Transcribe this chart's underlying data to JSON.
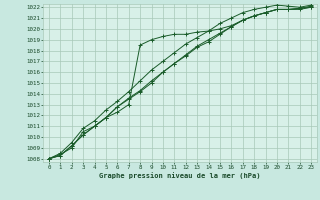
{
  "title": "Graphe pression niveau de la mer (hPa)",
  "bg_color": "#c8e8e0",
  "plot_bg_color": "#d8f0e8",
  "grid_color": "#a8c8b8",
  "line_color": "#1a5c2a",
  "xlim": [
    0,
    23
  ],
  "ylim": [
    1008,
    1022
  ],
  "xticks": [
    0,
    1,
    2,
    3,
    4,
    5,
    6,
    7,
    8,
    9,
    10,
    11,
    12,
    13,
    14,
    15,
    16,
    17,
    18,
    19,
    20,
    21,
    22,
    23
  ],
  "yticks": [
    1008,
    1009,
    1010,
    1011,
    1012,
    1013,
    1014,
    1015,
    1016,
    1017,
    1018,
    1019,
    1020,
    1021,
    1022
  ],
  "series": [
    [
      1008.0,
      1008.4,
      1009.0,
      1010.5,
      1011.0,
      1011.8,
      1012.3,
      1013.0,
      1018.5,
      1019.0,
      1019.3,
      1019.5,
      1019.5,
      1019.7,
      1019.8,
      1020.0,
      1020.3,
      1020.8,
      1021.2,
      1021.5,
      1021.8,
      1021.8,
      1021.9,
      1022.1
    ],
    [
      1008.0,
      1008.3,
      1009.2,
      1010.2,
      1011.0,
      1011.8,
      1012.8,
      1013.5,
      1014.2,
      1015.0,
      1016.0,
      1016.8,
      1017.5,
      1018.3,
      1018.8,
      1019.5,
      1020.2,
      1020.8,
      1021.2,
      1021.5,
      1021.8,
      1021.8,
      1021.8,
      1022.0
    ],
    [
      1008.0,
      1008.3,
      1009.2,
      1010.2,
      1011.0,
      1011.8,
      1012.8,
      1013.6,
      1014.3,
      1015.2,
      1016.0,
      1016.8,
      1017.6,
      1018.4,
      1019.0,
      1019.6,
      1020.2,
      1020.8,
      1021.2,
      1021.5,
      1021.8,
      1021.8,
      1021.9,
      1022.0
    ],
    [
      1008.0,
      1008.5,
      1009.5,
      1010.8,
      1011.5,
      1012.5,
      1013.3,
      1014.2,
      1015.2,
      1016.2,
      1017.0,
      1017.8,
      1018.6,
      1019.2,
      1019.8,
      1020.5,
      1021.0,
      1021.5,
      1021.8,
      1022.0,
      1022.2,
      1022.1,
      1022.0,
      1022.2
    ]
  ]
}
